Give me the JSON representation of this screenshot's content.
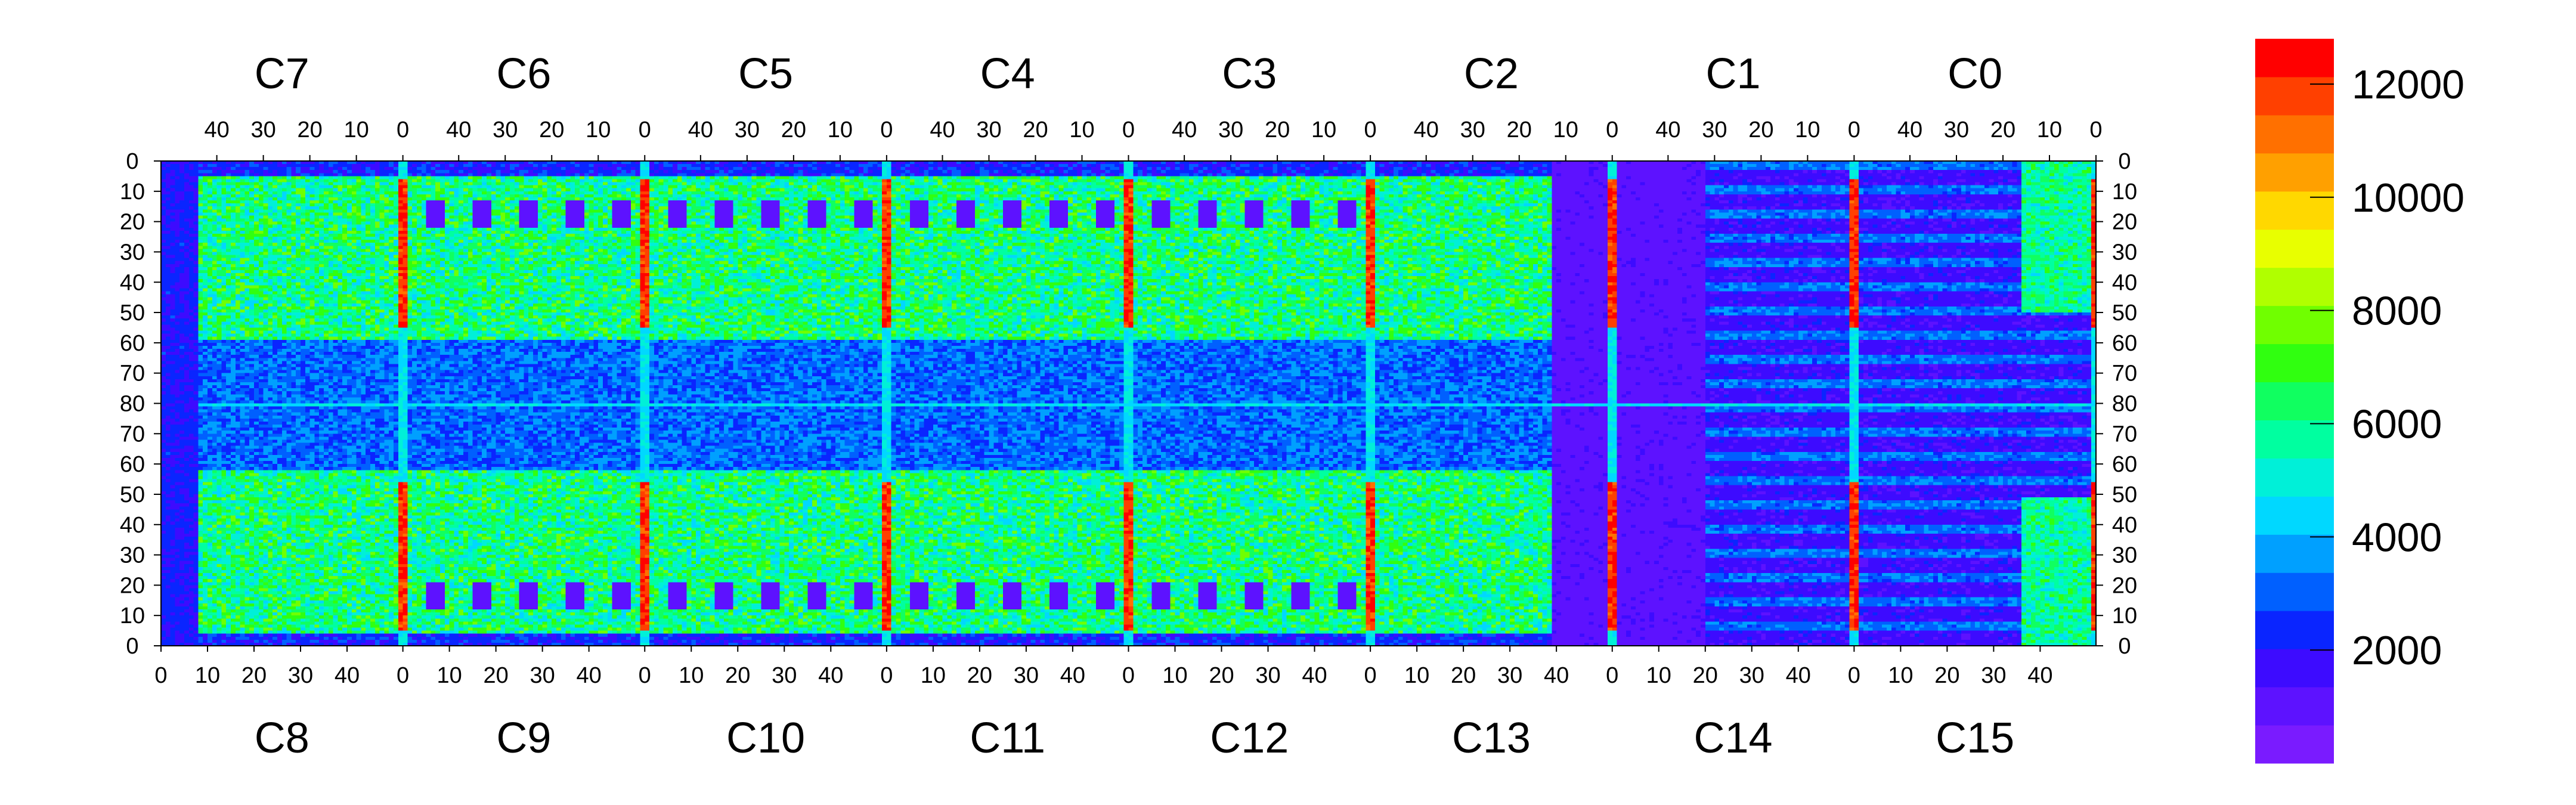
{
  "chart_data": {
    "type": "heatmap",
    "title": "",
    "top_chips": [
      "C7",
      "C6",
      "C5",
      "C4",
      "C3",
      "C2",
      "C1",
      "C0"
    ],
    "bottom_chips": [
      "C8",
      "C9",
      "C10",
      "C11",
      "C12",
      "C13",
      "C14",
      "C15"
    ],
    "top_x_ticks": [
      "40",
      "30",
      "20",
      "10",
      "0"
    ],
    "bottom_x_ticks": [
      "0",
      "10",
      "20",
      "30",
      "40"
    ],
    "y_ticks_top_half": [
      "0",
      "10",
      "20",
      "30",
      "40",
      "50",
      "60",
      "70",
      "80"
    ],
    "y_ticks_bottom_half": [
      "70",
      "60",
      "50",
      "40",
      "30",
      "20",
      "10",
      "0"
    ],
    "colorbar": {
      "min": 0,
      "max": 12800,
      "tick_labels": [
        "12000",
        "10000",
        "8000",
        "6000",
        "4000",
        "2000"
      ],
      "tick_values": [
        12000,
        10000,
        8000,
        6000,
        4000,
        2000
      ],
      "colors": [
        "#7a1bff",
        "#5d12ff",
        "#3d0bff",
        "#0a25ff",
        "#0060ff",
        "#00a0ff",
        "#00d8ff",
        "#00f0d8",
        "#00ffa0",
        "#10ff60",
        "#30ff10",
        "#70ff00",
        "#b0ff00",
        "#e8ff00",
        "#ffd800",
        "#ffa000",
        "#ff7000",
        "#ff4000",
        "#ff0000"
      ]
    },
    "pixel_columns_per_chip": 51,
    "pixel_rows": 160,
    "description_levels": {
      "background": 1500,
      "active_area": 6000,
      "hot_columns": 12000,
      "dead_chip_region": 800
    }
  }
}
